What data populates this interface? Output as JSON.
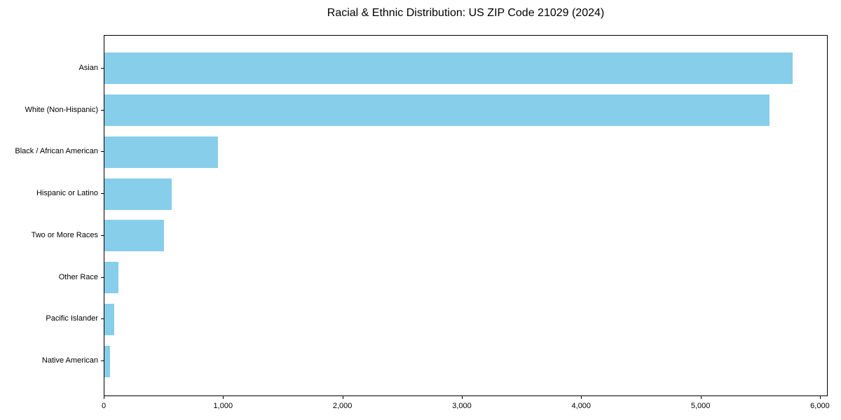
{
  "chart_data": {
    "type": "bar",
    "orientation": "horizontal",
    "title": "Racial & Ethnic Distribution: US ZIP Code 21029 (2024)",
    "categories": [
      "Asian",
      "White (Non-Hispanic)",
      "Black / African American",
      "Hispanic or Latino",
      "Two or More Races",
      "Other Race",
      "Pacific Islander",
      "Native American"
    ],
    "values": [
      5774,
      5584,
      955,
      565,
      500,
      118,
      85,
      45
    ],
    "xlabel": "",
    "ylabel": "",
    "xlim": [
      0,
      6065
    ],
    "xticks": [
      0,
      1000,
      2000,
      3000,
      4000,
      5000,
      6000
    ],
    "xtick_labels": [
      "0",
      "1,000",
      "2,000",
      "3,000",
      "4,000",
      "5,000",
      "6,000"
    ],
    "grid": false,
    "legend": "none",
    "bar_height_fraction": 0.75
  },
  "colors": {
    "bar": "#87CEEB",
    "text": "#000000",
    "spine": "#000000",
    "background": "#FFFFFF"
  }
}
